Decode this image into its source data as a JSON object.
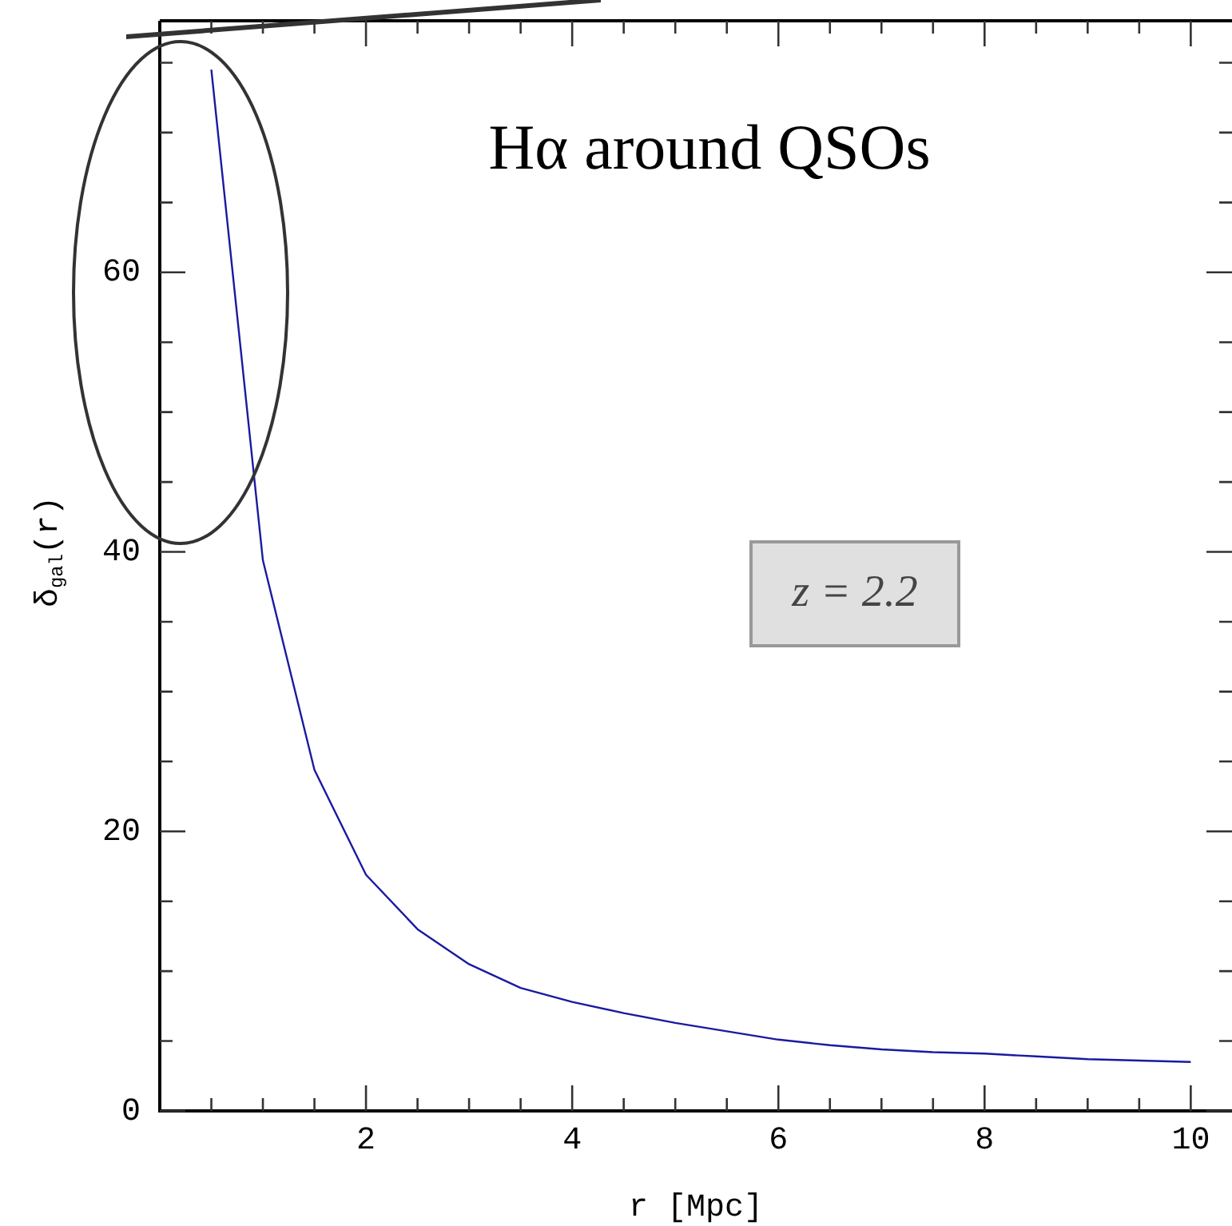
{
  "chart_data": {
    "type": "line",
    "title": "Hα around QSOs",
    "xlabel": "r [Mpc]",
    "ylabel": "δ$_{gal}$(r)",
    "annotations": [
      "z = 2.2"
    ],
    "x": [
      0.5,
      1,
      1.5,
      2,
      2.5,
      3,
      3.5,
      4,
      4.5,
      5,
      5.5,
      6,
      6.5,
      7,
      7.5,
      8,
      8.5,
      9,
      9.5,
      10
    ],
    "series": [
      {
        "color": "#1a1aa0",
        "values": [
          74.5,
          39.4,
          24.4,
          16.9,
          13.0,
          10.5,
          8.8,
          7.8,
          7.0,
          6.3,
          5.7,
          5.1,
          4.7,
          4.4,
          4.2,
          4.1,
          3.9,
          3.7,
          3.6,
          3.5
        ]
      }
    ],
    "xlim": [
      0,
      10.4
    ],
    "ylim": [
      0,
      78
    ],
    "xticks": [
      {
        "value": 0.5,
        "label": null
      },
      {
        "value": 1,
        "label": null
      },
      {
        "value": 1.5,
        "label": null
      },
      2,
      {
        "value": 2.5,
        "label": null
      },
      {
        "value": 3,
        "label": null
      },
      {
        "value": 3.5,
        "label": null
      },
      4,
      {
        "value": 4.5,
        "label": null
      },
      {
        "value": 5,
        "label": null
      },
      {
        "value": 5.5,
        "label": null
      },
      6,
      {
        "value": 6.5,
        "label": null
      },
      {
        "value": 7,
        "label": null
      },
      {
        "value": 7.5,
        "label": null
      },
      8,
      {
        "value": 8.5,
        "label": null
      },
      {
        "value": 9,
        "label": null
      },
      {
        "value": 9.5,
        "label": null
      },
      10
    ],
    "yticks": [
      0,
      {
        "value": 5,
        "label": null
      },
      {
        "value": 10,
        "label": null
      },
      {
        "value": 15,
        "label": null
      },
      20,
      {
        "value": 25,
        "label": null
      },
      {
        "value": 30,
        "label": null
      },
      {
        "value": 35,
        "label": null
      },
      40,
      {
        "value": 45,
        "label": null
      },
      {
        "value": 50,
        "label": null
      },
      {
        "value": 55,
        "label": null
      },
      60,
      {
        "value": 65,
        "label": null
      },
      {
        "value": 70,
        "label": null
      },
      {
        "value": 75,
        "label": null
      }
    ],
    "grid": false,
    "legend": false,
    "marker": "none",
    "line_style": "solid"
  }
}
